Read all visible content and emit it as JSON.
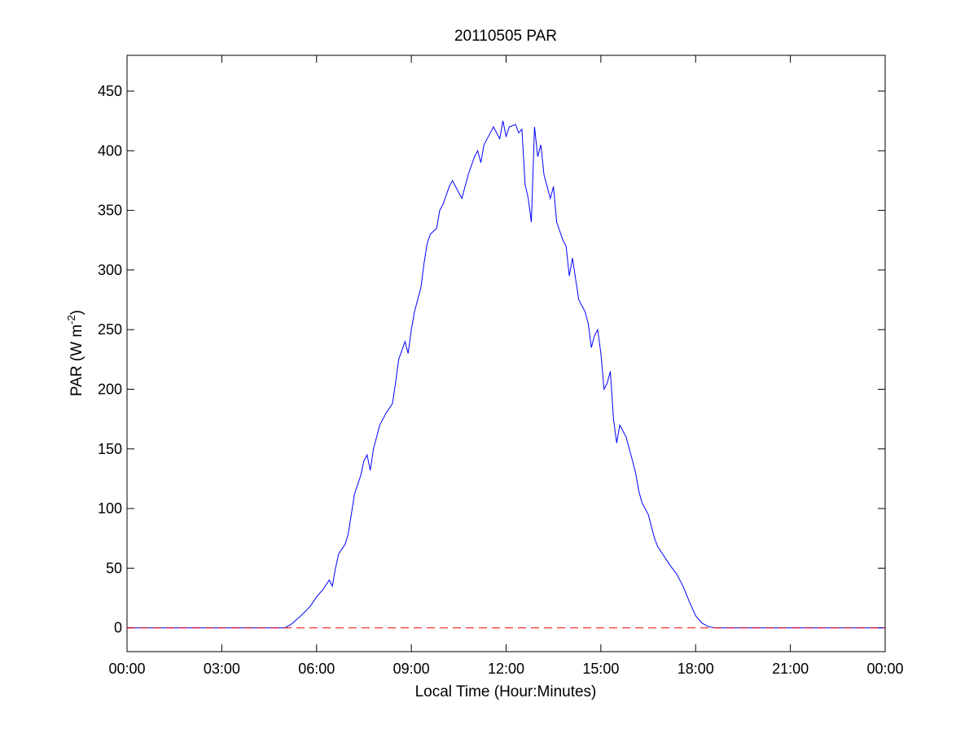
{
  "chart_data": {
    "type": "line",
    "title": "20110505 PAR",
    "xlabel": "Local Time (Hour:Minutes)",
    "ylabel": {
      "main": "PAR (W m",
      "superscript": "-2",
      "tail": ")"
    },
    "xlim": [
      0,
      24
    ],
    "ylim": [
      -20,
      480
    ],
    "x_ticks": [
      0,
      3,
      6,
      9,
      12,
      15,
      18,
      21,
      24
    ],
    "x_tick_labels": [
      "00:00",
      "03:00",
      "06:00",
      "09:00",
      "12:00",
      "15:00",
      "18:00",
      "21:00",
      "00:00"
    ],
    "y_ticks": [
      0,
      50,
      100,
      150,
      200,
      250,
      300,
      350,
      400,
      450
    ],
    "y_tick_labels": [
      "0",
      "50",
      "100",
      "150",
      "200",
      "250",
      "300",
      "350",
      "400",
      "450"
    ],
    "grid": false,
    "x_unit": "hours",
    "series": [
      {
        "color": "#0000ff",
        "style": "solid",
        "x": [
          0,
          5.0,
          5.2,
          5.5,
          5.8,
          6.0,
          6.2,
          6.4,
          6.5,
          6.6,
          6.7,
          6.9,
          7.0,
          7.1,
          7.2,
          7.4,
          7.5,
          7.6,
          7.7,
          7.8,
          7.9,
          8.0,
          8.2,
          8.4,
          8.5,
          8.6,
          8.8,
          8.9,
          9.0,
          9.1,
          9.3,
          9.4,
          9.5,
          9.6,
          9.8,
          9.9,
          10.0,
          10.2,
          10.3,
          10.5,
          10.6,
          10.8,
          11.0,
          11.1,
          11.2,
          11.3,
          11.5,
          11.6,
          11.8,
          11.9,
          12.0,
          12.1,
          12.3,
          12.4,
          12.5,
          12.6,
          12.7,
          12.8,
          12.9,
          13.0,
          13.1,
          13.2,
          13.4,
          13.5,
          13.6,
          13.8,
          13.9,
          14.0,
          14.1,
          14.3,
          14.4,
          14.5,
          14.6,
          14.7,
          14.8,
          14.9,
          15.0,
          15.1,
          15.2,
          15.3,
          15.4,
          15.5,
          15.6,
          15.7,
          15.8,
          15.9,
          16.0,
          16.1,
          16.2,
          16.3,
          16.4,
          16.5,
          16.6,
          16.7,
          16.8,
          16.9,
          17.0,
          17.2,
          17.4,
          17.6,
          17.8,
          18.0,
          18.2,
          18.4,
          18.6,
          18.8,
          19.0,
          24
        ],
        "y": [
          0,
          0,
          3,
          10,
          18,
          26,
          32,
          40,
          35,
          50,
          62,
          70,
          78,
          95,
          112,
          128,
          140,
          145,
          132,
          150,
          160,
          170,
          180,
          188,
          205,
          225,
          240,
          230,
          250,
          265,
          285,
          305,
          322,
          330,
          335,
          350,
          355,
          370,
          375,
          365,
          360,
          380,
          395,
          400,
          390,
          405,
          415,
          420,
          410,
          425,
          412,
          420,
          422,
          415,
          418,
          372,
          360,
          340,
          420,
          395,
          405,
          380,
          360,
          370,
          340,
          325,
          320,
          295,
          310,
          275,
          270,
          265,
          255,
          235,
          245,
          250,
          230,
          200,
          205,
          215,
          175,
          155,
          170,
          165,
          160,
          150,
          140,
          130,
          115,
          105,
          100,
          95,
          85,
          75,
          68,
          64,
          60,
          52,
          45,
          35,
          22,
          10,
          4,
          1,
          0,
          0,
          0,
          0
        ]
      },
      {
        "color": "#ff0000",
        "style": "dashed",
        "x": [
          0,
          24
        ],
        "y": [
          0,
          0
        ]
      }
    ]
  }
}
